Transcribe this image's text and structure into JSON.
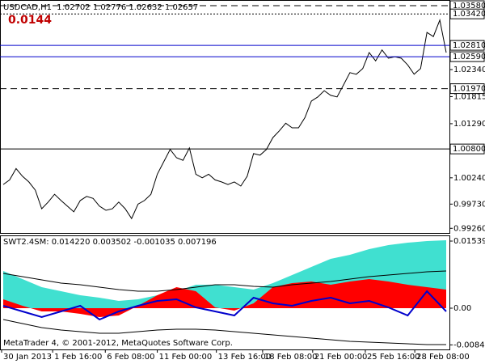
{
  "chart_data": [
    {
      "type": "line",
      "title": "USDCAD,H1  1.02702 1.02776 1.02632 1.02657",
      "annotation": "0.0144",
      "x": [
        0,
        1,
        2,
        3,
        4,
        5,
        6,
        7,
        8,
        9,
        10,
        11,
        12,
        13,
        14,
        15,
        16,
        17,
        18,
        19,
        20,
        21,
        22,
        23,
        24,
        25,
        26,
        27,
        28,
        29,
        30,
        31,
        32,
        33,
        34,
        35,
        36,
        37,
        38,
        39,
        40,
        41,
        42,
        43,
        44,
        45,
        46,
        47,
        48,
        49,
        50,
        51,
        52,
        53,
        54,
        55,
        56,
        57,
        58,
        59,
        60,
        61,
        62,
        63,
        64,
        65,
        66,
        67,
        68,
        69
      ],
      "xlim": [
        -0.5,
        69.5
      ],
      "ylim": [
        0.9917,
        1.0369
      ],
      "yticks": [
        {
          "value": 1.0234,
          "label": "1.02340"
        },
        {
          "value": 1.01815,
          "label": "1.01815"
        },
        {
          "value": 1.0129,
          "label": "1.01290"
        },
        {
          "value": 1.0024,
          "label": "1.00240"
        },
        {
          "value": 0.9973,
          "label": "0.99730"
        },
        {
          "value": 0.9926,
          "label": "0.99260"
        }
      ],
      "levels": [
        {
          "value": 1.0358,
          "label": "1.03580",
          "style": "dashed",
          "color": "#000000"
        },
        {
          "value": 1.0342,
          "label": "1.03420",
          "style": "dotted",
          "color": "#000000"
        },
        {
          "value": 1.0281,
          "label": "1.02810",
          "style": "solid",
          "color": "#0000cc"
        },
        {
          "value": 1.0259,
          "label": "1.02590",
          "style": "solid",
          "color": "#0000cc"
        },
        {
          "value": 1.0197,
          "label": "1.01970",
          "style": "dashed",
          "color": "#000000"
        },
        {
          "value": 1.008,
          "label": "1.00800",
          "style": "solid",
          "color": "#000000"
        }
      ],
      "series": [
        {
          "color": "#000000",
          "values": [
            1.0011,
            1.002,
            1.0042,
            1.0027,
            1.0016,
            1.0,
            0.9964,
            0.9977,
            0.9992,
            0.998,
            0.9969,
            0.9958,
            0.998,
            0.9988,
            0.9984,
            0.9969,
            0.9961,
            0.9964,
            0.9977,
            0.9964,
            0.9945,
            0.9973,
            0.998,
            0.9992,
            1.0031,
            1.0055,
            1.0079,
            1.0063,
            1.0058,
            1.0082,
            1.0031,
            1.0024,
            1.0031,
            1.002,
            1.0016,
            1.0011,
            1.0016,
            1.0008,
            1.0027,
            1.0071,
            1.0068,
            1.0079,
            1.0102,
            1.0115,
            1.013,
            1.0121,
            1.0121,
            1.0141,
            1.0173,
            1.0181,
            1.0193,
            1.0184,
            1.0181,
            1.0204,
            1.0228,
            1.0225,
            1.0236,
            1.0267,
            1.0251,
            1.0272,
            1.0256,
            1.0259,
            1.0256,
            1.0243,
            1.0225,
            1.0236,
            1.0306,
            1.0298,
            1.033,
            1.0267
          ]
        }
      ]
    },
    {
      "type": "line",
      "title": "SWT2.4SM: 0.014220 0.003502 -0.001035 0.007196",
      "x": [
        0,
        3,
        6,
        9,
        12,
        15,
        18,
        21,
        24,
        27,
        30,
        33,
        36,
        39,
        42,
        45,
        48,
        51,
        54,
        57,
        60,
        63,
        66,
        69
      ],
      "xlim": [
        -0.5,
        69.5
      ],
      "ylim": [
        -0.00946,
        0.01651
      ],
      "yticks": [
        0.015393,
        {
          "value": 0,
          "label": "0.00"
        },
        -0.008414
      ],
      "xticks": [
        {
          "value": -0.25,
          "label": "30 Jan 2013"
        },
        {
          "value": 7.7,
          "label": "1 Feb 16:00"
        },
        {
          "value": 15.9,
          "label": "6 Feb 08:00"
        },
        {
          "value": 24,
          "label": "11 Feb 00:00"
        },
        {
          "value": 33.2,
          "label": "13 Feb 16:00"
        },
        {
          "value": 40.4,
          "label": "18 Feb 08:00"
        },
        {
          "value": 48.2,
          "label": "21 Feb 00:00"
        },
        {
          "value": 56.4,
          "label": "25 Feb 16:00"
        },
        {
          "value": 64.1,
          "label": "28 Feb 08:00"
        }
      ],
      "series": [
        {
          "color": "#40e0d0",
          "fill": true,
          "values": [
            0.00853,
            0.00668,
            0.00482,
            0.00389,
            0.00297,
            0.00241,
            0.00167,
            0.00204,
            0.00297,
            0.00389,
            0.00538,
            0.00538,
            0.00482,
            0.00427,
            0.00575,
            0.0076,
            0.00946,
            0.01131,
            0.01224,
            0.01354,
            0.01447,
            0.01502,
            0.01539,
            0.01558
          ]
        },
        {
          "color": "#ff0000",
          "fill": true,
          "values": [
            0.00204,
            0.00056,
            -0.00074,
            -0.00074,
            -0.0013,
            -0.00204,
            -0.00167,
            0.00056,
            0.00297,
            0.00482,
            0.00389,
            0.00019,
            -0.00056,
            0.00111,
            0.00482,
            0.00575,
            0.00612,
            0.00538,
            0.00612,
            0.00668,
            0.00612,
            0.00538,
            0.00482,
            0.00427
          ]
        },
        {
          "color": "#000000",
          "values": [
            0.00797,
            0.00723,
            0.00649,
            0.00575,
            0.00538,
            0.00482,
            0.00427,
            0.00389,
            0.00389,
            0.00427,
            0.00482,
            0.00538,
            0.00538,
            0.00501,
            0.00482,
            0.00538,
            0.00575,
            0.00612,
            0.00668,
            0.00723,
            0.0076,
            0.00797,
            0.00835,
            0.00853
          ]
        },
        {
          "color": "#000000",
          "values": [
            -0.0026,
            -0.00352,
            -0.00445,
            -0.00501,
            -0.00538,
            -0.00575,
            -0.00575,
            -0.00538,
            -0.00501,
            -0.00482,
            -0.00482,
            -0.00501,
            -0.00538,
            -0.00575,
            -0.00612,
            -0.00649,
            -0.00686,
            -0.00723,
            -0.0076,
            -0.00779,
            -0.00797,
            -0.00816,
            -0.00835,
            -0.00835
          ]
        },
        {
          "color": "#0000cc",
          "values": [
            0.00056,
            -0.00074,
            -0.00204,
            -0.00074,
            0.00056,
            -0.0026,
            -0.00074,
            0.00056,
            0.00167,
            0.00204,
            0.00019,
            -0.00074,
            -0.00167,
            0.00241,
            0.00111,
            0.00056,
            0.00167,
            0.00241,
            0.00111,
            0.00167,
            0.00019,
            -0.00167,
            0.00389,
            -0.00074
          ]
        }
      ]
    }
  ],
  "footer": "MetaTrader 4, © 2001-2012, MetaQuotes Software Corp."
}
